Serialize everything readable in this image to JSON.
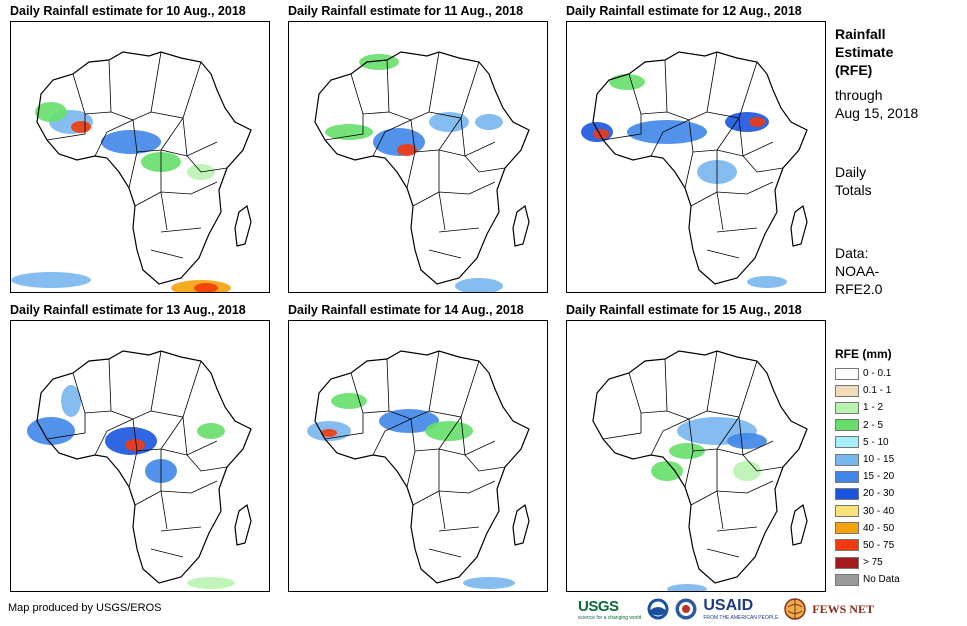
{
  "panels": [
    {
      "title": "Daily Rainfall estimate for 10 Aug., 2018"
    },
    {
      "title": "Daily Rainfall estimate for 11 Aug., 2018"
    },
    {
      "title": "Daily Rainfall estimate for 12 Aug., 2018"
    },
    {
      "title": "Daily Rainfall estimate for 13 Aug., 2018"
    },
    {
      "title": "Daily Rainfall estimate for 14 Aug., 2018"
    },
    {
      "title": "Daily Rainfall estimate for 15 Aug., 2018"
    }
  ],
  "side": {
    "title_line1": "Rainfall",
    "title_line2": "Estimate",
    "title_line3": "(RFE)",
    "through_line1": "through",
    "through_line2": "Aug 15, 2018",
    "totals_line1": "Daily",
    "totals_line2": "Totals",
    "data_line1": "Data:",
    "data_line2": "NOAA-",
    "data_line3": "RFE2.0"
  },
  "legend": {
    "title": "RFE (mm)",
    "items": [
      {
        "label": "0 - 0.1",
        "color": "#ffffff"
      },
      {
        "label": "0.1 - 1",
        "color": "#f1dcb9"
      },
      {
        "label": "1 - 2",
        "color": "#b9f3b0"
      },
      {
        "label": "2 - 5",
        "color": "#66df6a"
      },
      {
        "label": "5 - 10",
        "color": "#a8eef9"
      },
      {
        "label": "10 - 15",
        "color": "#78b6ee"
      },
      {
        "label": "15 - 20",
        "color": "#3f86e8"
      },
      {
        "label": "20 - 30",
        "color": "#1b55df"
      },
      {
        "label": "30 - 40",
        "color": "#f9e27a"
      },
      {
        "label": "40 - 50",
        "color": "#f5a10a"
      },
      {
        "label": "50 - 75",
        "color": "#f23a0c"
      },
      {
        "label": "> 75",
        "color": "#a51b1b"
      },
      {
        "label": "No Data",
        "color": "#9a9a9a"
      }
    ]
  },
  "credit": "Map produced by USGS/EROS",
  "logos": {
    "usgs": "USGS",
    "usgs_tagline": "science for a changing world",
    "usaid": "USAID",
    "usaid_tagline": "FROM THE AMERICAN PEOPLE",
    "fews": "FEWS NET"
  }
}
